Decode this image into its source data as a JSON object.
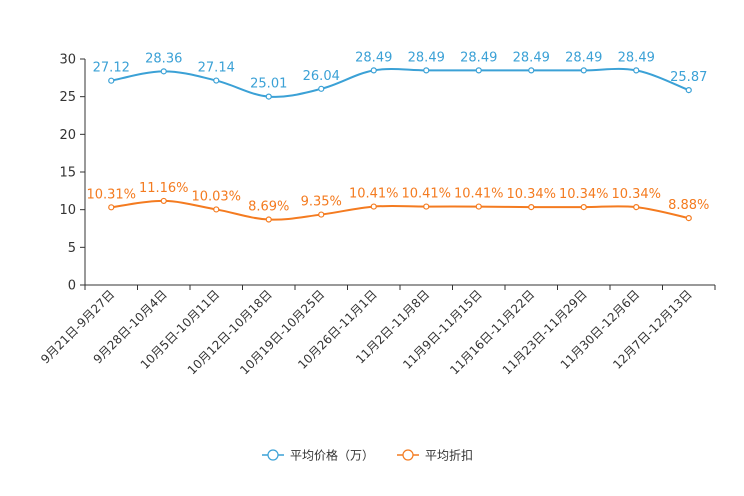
{
  "chart_data": {
    "type": "line",
    "title": "",
    "xlabel": "",
    "ylabel": "",
    "ylim": [
      0,
      30
    ],
    "yticks": [
      0,
      5,
      10,
      15,
      20,
      25,
      30
    ],
    "categories": [
      "9月21日-9月27日",
      "9月28日-10月4日",
      "10月5日-10月11日",
      "10月12日-10月18日",
      "10月19日-10月25日",
      "10月26日-11月1日",
      "11月2日-11月8日",
      "11月9日-11月15日",
      "11月16日-11月22日",
      "11月23日-11月29日",
      "11月30日-12月6日",
      "12月7日-12月13日"
    ],
    "series": [
      {
        "name": "平均价格（万）",
        "color": "#3ba1d6",
        "values": [
          27.12,
          28.36,
          27.14,
          25.01,
          26.04,
          28.49,
          28.49,
          28.49,
          28.49,
          28.49,
          28.49,
          25.87
        ],
        "labels": [
          "27.12",
          "28.36",
          "27.14",
          "25.01",
          "26.04",
          "28.49",
          "28.49",
          "28.49",
          "28.49",
          "28.49",
          "28.49",
          "25.87"
        ]
      },
      {
        "name": "平均折扣",
        "color": "#f47b20",
        "values": [
          10.31,
          11.16,
          10.03,
          8.69,
          9.35,
          10.41,
          10.41,
          10.41,
          10.34,
          10.34,
          10.34,
          8.88
        ],
        "labels": [
          "10.31%",
          "11.16%",
          "10.03%",
          "8.69%",
          "9.35%",
          "10.41%",
          "10.41%",
          "10.41%",
          "10.34%",
          "10.34%",
          "10.34%",
          "8.88%"
        ]
      }
    ],
    "legend_position": "bottom-center",
    "grid": false
  }
}
